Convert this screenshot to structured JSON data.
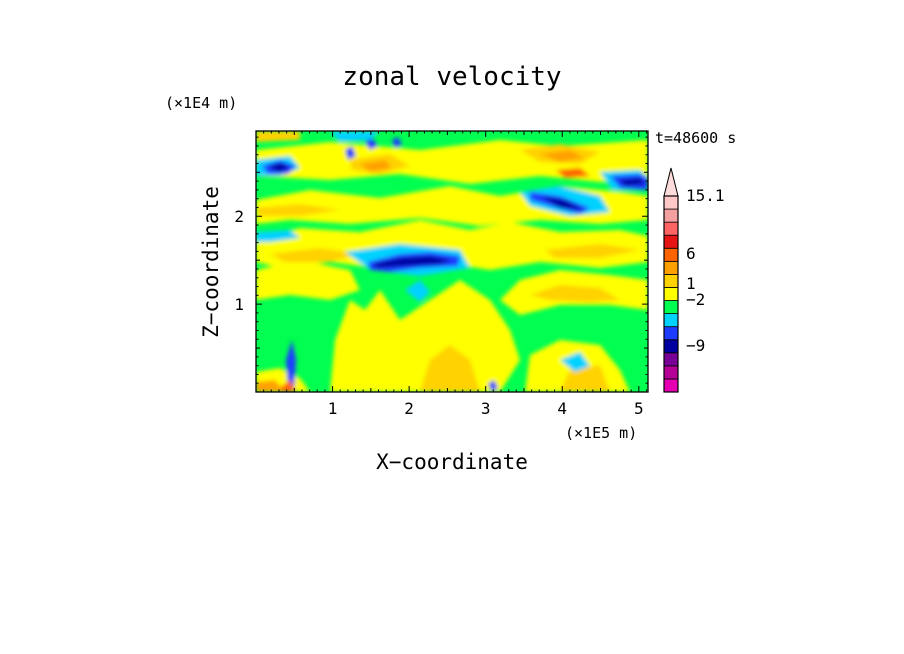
{
  "chart_data": {
    "type": "heatmap",
    "title": "zonal velocity",
    "xlabel": "X−coordinate",
    "ylabel": "Z−coordinate",
    "x_unit": "(×1E5 m)",
    "y_unit": "(×1E4 m)",
    "time_label": "t=48600 s",
    "xlim": [
      0,
      5.12
    ],
    "ylim": [
      0,
      2.97
    ],
    "x_ticks": [
      {
        "value": 1,
        "label": "1"
      },
      {
        "value": 2,
        "label": "2"
      },
      {
        "value": 3,
        "label": "3"
      },
      {
        "value": 4,
        "label": "4"
      },
      {
        "value": 5,
        "label": "5"
      }
    ],
    "y_ticks": [
      {
        "value": 1,
        "label": "1"
      },
      {
        "value": 2,
        "label": "2"
      }
    ],
    "colorbar": {
      "colors": [
        "#e600b4",
        "#b40096",
        "#780096",
        "#0000a0",
        "#1e3cff",
        "#00d2ff",
        "#00ff50",
        "#ffff00",
        "#ffd200",
        "#ffa000",
        "#ff6400",
        "#e61414",
        "#ff6464",
        "#f5a0a0",
        "#ffc8c8"
      ],
      "over_color": "#ffdcdc",
      "labels": [
        {
          "value": 15.1,
          "label": "15.1"
        },
        {
          "value": 6,
          "label": "6"
        },
        {
          "value": 1,
          "label": "1"
        },
        {
          "value": -2,
          "label": "−2"
        },
        {
          "value": -9,
          "label": "−9"
        }
      ]
    }
  }
}
